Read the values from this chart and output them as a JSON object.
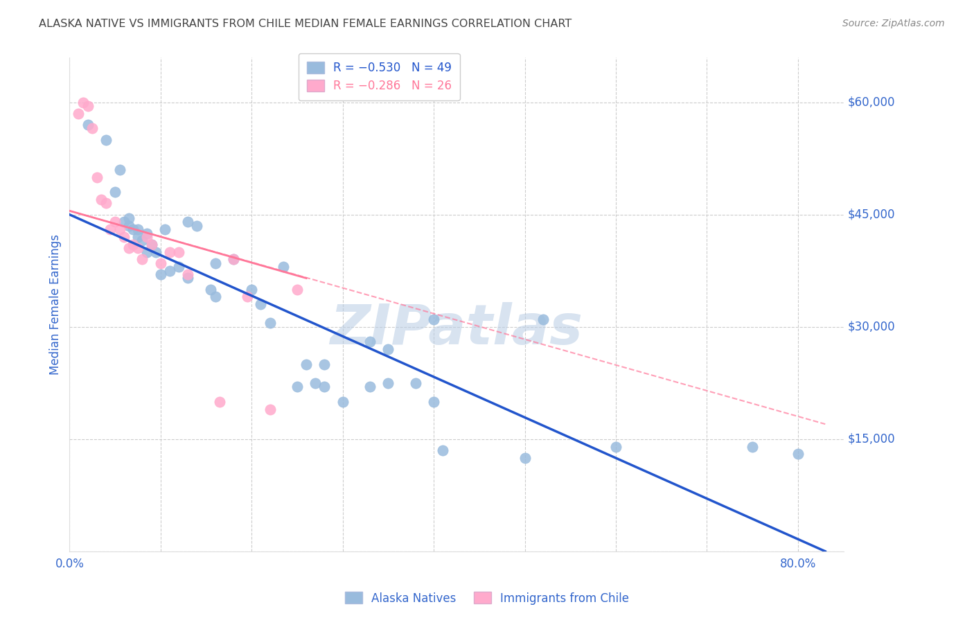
{
  "title": "ALASKA NATIVE VS IMMIGRANTS FROM CHILE MEDIAN FEMALE EARNINGS CORRELATION CHART",
  "source": "Source: ZipAtlas.com",
  "ylabel": "Median Female Earnings",
  "x_ticks": [
    0.0,
    0.1,
    0.2,
    0.3,
    0.4,
    0.5,
    0.6,
    0.7,
    0.8
  ],
  "x_tick_labels": [
    "0.0%",
    "",
    "",
    "",
    "",
    "",
    "",
    "",
    "80.0%"
  ],
  "y_ticks": [
    0,
    15000,
    30000,
    45000,
    60000
  ],
  "y_tick_labels_right": [
    "",
    "$15,000",
    "$30,000",
    "$45,000",
    "$60,000"
  ],
  "xlim": [
    0.0,
    0.85
  ],
  "ylim": [
    0,
    66000
  ],
  "blue_R": "-0.530",
  "blue_N": "49",
  "pink_R": "-0.286",
  "pink_N": "26",
  "blue_scatter_x": [
    0.02,
    0.04,
    0.05,
    0.055,
    0.06,
    0.065,
    0.065,
    0.07,
    0.075,
    0.075,
    0.08,
    0.085,
    0.085,
    0.09,
    0.095,
    0.1,
    0.105,
    0.11,
    0.12,
    0.13,
    0.14,
    0.155,
    0.16,
    0.18,
    0.2,
    0.21,
    0.22,
    0.235,
    0.26,
    0.27,
    0.28,
    0.3,
    0.33,
    0.35,
    0.38,
    0.4,
    0.41,
    0.5,
    0.52,
    0.6,
    0.75,
    0.8,
    0.13,
    0.16,
    0.25,
    0.28,
    0.33,
    0.35,
    0.4
  ],
  "blue_scatter_y": [
    57000,
    55000,
    48000,
    51000,
    44000,
    43500,
    44500,
    43000,
    42000,
    43000,
    41500,
    40000,
    42500,
    41000,
    40000,
    37000,
    43000,
    37500,
    38000,
    44000,
    43500,
    35000,
    34000,
    39000,
    35000,
    33000,
    30500,
    38000,
    25000,
    22500,
    22000,
    20000,
    22000,
    22500,
    22500,
    31000,
    13500,
    12500,
    31000,
    14000,
    14000,
    13000,
    36500,
    38500,
    22000,
    25000,
    28000,
    27000,
    20000
  ],
  "pink_scatter_x": [
    0.01,
    0.015,
    0.02,
    0.025,
    0.03,
    0.035,
    0.04,
    0.045,
    0.05,
    0.055,
    0.06,
    0.065,
    0.07,
    0.075,
    0.08,
    0.085,
    0.09,
    0.1,
    0.11,
    0.12,
    0.13,
    0.165,
    0.18,
    0.195,
    0.22,
    0.25
  ],
  "pink_scatter_y": [
    58500,
    60000,
    59500,
    56500,
    50000,
    47000,
    46500,
    43000,
    44000,
    43000,
    42000,
    40500,
    41000,
    40500,
    39000,
    42000,
    41000,
    38500,
    40000,
    40000,
    37000,
    20000,
    39000,
    34000,
    19000,
    35000
  ],
  "blue_line_x": [
    0.0,
    0.83
  ],
  "blue_line_y": [
    45000,
    0
  ],
  "pink_solid_line_x": [
    0.0,
    0.26
  ],
  "pink_solid_line_y": [
    45500,
    36500
  ],
  "pink_dash_line_x": [
    0.0,
    0.83
  ],
  "pink_dash_line_y": [
    45500,
    17000
  ],
  "watermark": "ZIPatlas",
  "background_color": "#ffffff",
  "plot_bg_color": "#ffffff",
  "grid_color": "#cccccc",
  "blue_color": "#99bbdd",
  "pink_color": "#ffaacc",
  "blue_line_color": "#2255cc",
  "pink_line_color": "#ff7799",
  "title_color": "#444444",
  "axis_label_color": "#3366cc",
  "tick_label_color": "#3366cc",
  "legend_blue_text": "R = −0.530   N = 49",
  "legend_pink_text": "R = −0.286   N = 26"
}
